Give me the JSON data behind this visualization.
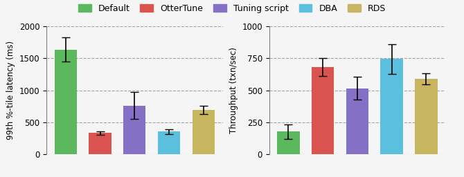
{
  "categories": [
    "Default",
    "OtterTune",
    "Tuning script",
    "DBA",
    "RDS"
  ],
  "colors": [
    "#5cb85c",
    "#d9534f",
    "#8470c4",
    "#5bc0de",
    "#c8b560"
  ],
  "latency_values": [
    1640,
    330,
    760,
    350,
    690
  ],
  "latency_errors": [
    190,
    30,
    210,
    40,
    65
  ],
  "throughput_values": [
    175,
    680,
    515,
    745,
    590
  ],
  "throughput_errors": [
    55,
    70,
    90,
    115,
    45
  ],
  "ylabel_latency": "99th %-tile latency (ms)",
  "ylabel_throughput": "Throughput (txn/sec)",
  "ylim_latency": [
    0,
    2000
  ],
  "ylim_throughput": [
    0,
    1000
  ],
  "yticks_latency": [
    0,
    500,
    1000,
    1500,
    2000
  ],
  "yticks_throughput": [
    0,
    250,
    500,
    750,
    1000
  ],
  "background_color": "#f5f5f0",
  "legend_labels": [
    "Default",
    "OtterTune",
    "Tuning script",
    "DBA",
    "RDS"
  ]
}
